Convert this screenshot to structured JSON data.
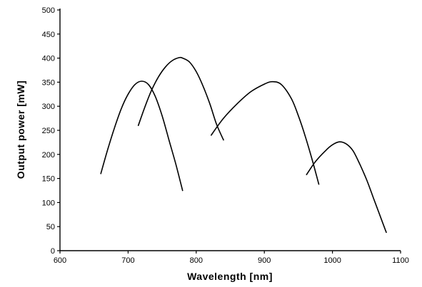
{
  "chart_data": {
    "type": "line",
    "title": "",
    "xlabel": "Wavelength  [nm]",
    "ylabel": "Output  power  [mW]",
    "xlim": [
      600,
      1100
    ],
    "ylim": [
      0,
      500
    ],
    "x_ticks": [
      600,
      700,
      800,
      900,
      1000,
      1100
    ],
    "y_ticks": [
      0,
      50,
      100,
      150,
      200,
      250,
      300,
      350,
      400,
      450,
      500
    ],
    "grid": false,
    "legend": "none",
    "line_color": "#000000",
    "series": [
      {
        "x": [
          660,
          670,
          680,
          690,
          700,
          710,
          720,
          730,
          740,
          750,
          760,
          770,
          780
        ],
        "y": [
          160,
          210,
          255,
          295,
          325,
          345,
          352,
          345,
          320,
          280,
          230,
          180,
          125
        ]
      },
      {
        "x": [
          715,
          725,
          735,
          745,
          755,
          765,
          775,
          780,
          790,
          800,
          810,
          820,
          830,
          840
        ],
        "y": [
          260,
          300,
          335,
          362,
          382,
          395,
          401,
          400,
          392,
          372,
          342,
          305,
          262,
          230
        ]
      },
      {
        "x": [
          822,
          840,
          860,
          880,
          900,
          912,
          925,
          940,
          950,
          960,
          970,
          980
        ],
        "y": [
          240,
          275,
          305,
          330,
          346,
          351,
          345,
          315,
          280,
          238,
          190,
          138
        ]
      },
      {
        "x": [
          962,
          975,
          990,
          1000,
          1010,
          1020,
          1030,
          1040,
          1050,
          1060,
          1070,
          1079
        ],
        "y": [
          158,
          185,
          208,
          220,
          226,
          222,
          208,
          180,
          148,
          110,
          72,
          38
        ]
      }
    ]
  }
}
